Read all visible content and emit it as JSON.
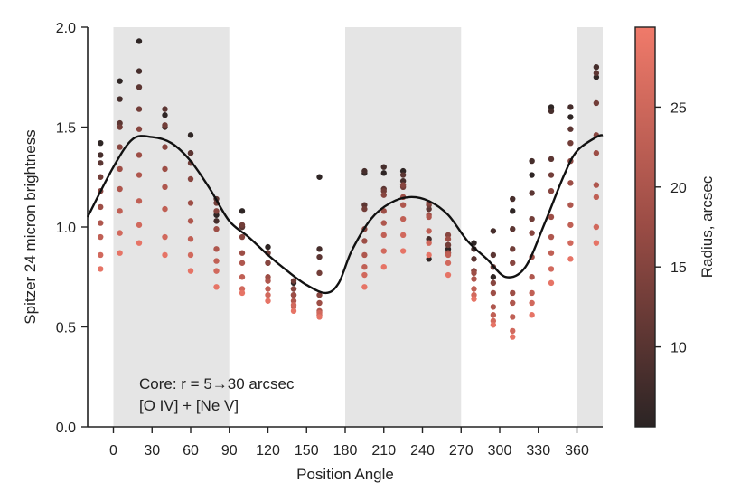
{
  "chart_data": {
    "type": "scatter",
    "xlabel": "Position Angle",
    "ylabel": "Spitzer 24 micron brightness",
    "xlim": [
      -20,
      380
    ],
    "ylim": [
      0.0,
      2.0
    ],
    "x_ticks": [
      0,
      30,
      60,
      90,
      120,
      150,
      180,
      210,
      240,
      270,
      300,
      330,
      360
    ],
    "y_ticks": [
      0.0,
      0.5,
      1.0,
      1.5,
      2.0
    ],
    "y_tick_labels": [
      "0.0",
      "0.5",
      "1.0",
      "1.5",
      "2.0"
    ],
    "shaded_regions": [
      [
        0,
        90
      ],
      [
        180,
        270
      ],
      [
        360,
        380
      ]
    ],
    "annotation_lines": [
      "Core: r = 5→30 arcsec",
      "[O IV] + [Ne V]"
    ],
    "colorbar": {
      "label": "Radius, arcsec",
      "range": [
        5,
        30
      ],
      "ticks": [
        10,
        15,
        20,
        25
      ],
      "color_low": "#2b2424",
      "color_high": "#f07a6a"
    },
    "radii": [
      5.5,
      8,
      10.5,
      13,
      15.5,
      18,
      20.5,
      23,
      25.5,
      28.5
    ],
    "series": [
      {
        "values": [
          1.42,
          1.73,
          1.93,
          1.56,
          1.46,
          1.06,
          1.08,
          0.9,
          0.72,
          1.25,
          1.27,
          1.27,
          1.28,
          0.84,
          0.89,
          0.92,
          0.75,
          1.08,
          1.26,
          1.6,
          1.55,
          1.75
        ]
      },
      {
        "values": [
          1.36,
          1.64,
          1.78,
          1.5,
          1.37,
          1.03,
          1.0,
          0.82,
          0.66,
          0.89,
          1.28,
          1.3,
          1.23,
          0.94,
          0.87,
          0.89,
          0.98,
          1.14,
          1.33,
          1.58,
          1.6,
          1.8
        ]
      },
      {
        "values": [
          1.32,
          1.52,
          1.7,
          1.59,
          1.37,
          1.14,
          1.0,
          0.87,
          0.69,
          0.85,
          1.11,
          1.19,
          1.26,
          1.09,
          0.91,
          0.84,
          0.86,
          0.99,
          1.17,
          1.34,
          1.49,
          1.77
        ]
      },
      {
        "values": [
          1.25,
          1.5,
          1.59,
          1.51,
          1.32,
          1.12,
          1.01,
          0.87,
          0.73,
          0.77,
          1.09,
          1.18,
          1.2,
          1.11,
          0.91,
          0.78,
          0.8,
          0.89,
          1.04,
          1.26,
          1.42,
          1.62
        ]
      },
      {
        "values": [
          1.18,
          1.4,
          1.49,
          1.4,
          1.24,
          1.08,
          0.95,
          0.82,
          0.69,
          0.66,
          0.99,
          1.16,
          1.21,
          1.12,
          0.96,
          0.78,
          0.72,
          0.82,
          0.97,
          1.18,
          1.33,
          1.46
        ]
      },
      {
        "values": [
          1.1,
          1.29,
          1.36,
          1.29,
          1.12,
          0.99,
          0.87,
          0.75,
          0.66,
          0.62,
          0.93,
          1.08,
          1.15,
          1.06,
          0.94,
          0.77,
          0.67,
          0.67,
          0.85,
          1.05,
          1.22,
          1.37
        ]
      },
      {
        "values": [
          1.02,
          1.19,
          1.26,
          1.2,
          1.03,
          0.89,
          0.82,
          0.73,
          0.63,
          0.58,
          0.86,
          1.02,
          1.11,
          1.05,
          0.87,
          0.74,
          0.6,
          0.62,
          0.75,
          0.95,
          1.11,
          1.21
        ]
      },
      {
        "values": [
          0.95,
          1.08,
          1.13,
          1.09,
          0.94,
          0.83,
          0.75,
          0.69,
          0.6,
          0.56,
          0.8,
          0.96,
          1.04,
          0.98,
          0.86,
          0.69,
          0.56,
          0.55,
          0.67,
          0.87,
          1.01,
          1.15
        ]
      },
      {
        "values": [
          0.86,
          0.97,
          1.01,
          0.95,
          0.86,
          0.78,
          0.69,
          0.66,
          0.61,
          0.57,
          0.76,
          0.88,
          0.96,
          0.92,
          0.82,
          0.66,
          0.53,
          0.48,
          0.62,
          0.79,
          0.92,
          1.0
        ]
      },
      {
        "values": [
          0.79,
          0.87,
          0.92,
          0.86,
          0.78,
          0.7,
          0.67,
          0.63,
          0.58,
          0.55,
          0.7,
          0.8,
          0.88,
          0.86,
          0.76,
          0.64,
          0.51,
          0.45,
          0.56,
          0.72,
          0.84,
          0.92
        ]
      }
    ],
    "series_x": [
      -10,
      5,
      20,
      40,
      60,
      80,
      100,
      120,
      140,
      160,
      195,
      210,
      225,
      245,
      260,
      280,
      295,
      310,
      325,
      340,
      355,
      375
    ],
    "mean_curve": {
      "x": [
        -20,
        0,
        15,
        30,
        45,
        60,
        75,
        90,
        105,
        120,
        135,
        150,
        165,
        175,
        185,
        200,
        215,
        230,
        245,
        260,
        275,
        290,
        305,
        320,
        335,
        350,
        360,
        375,
        380
      ],
      "y": [
        1.05,
        1.3,
        1.44,
        1.45,
        1.42,
        1.33,
        1.19,
        1.03,
        0.95,
        0.86,
        0.78,
        0.71,
        0.67,
        0.72,
        0.88,
        1.04,
        1.12,
        1.15,
        1.13,
        1.06,
        0.93,
        0.84,
        0.75,
        0.8,
        1.02,
        1.26,
        1.38,
        1.45,
        1.46
      ],
      "color": "#111111"
    }
  }
}
